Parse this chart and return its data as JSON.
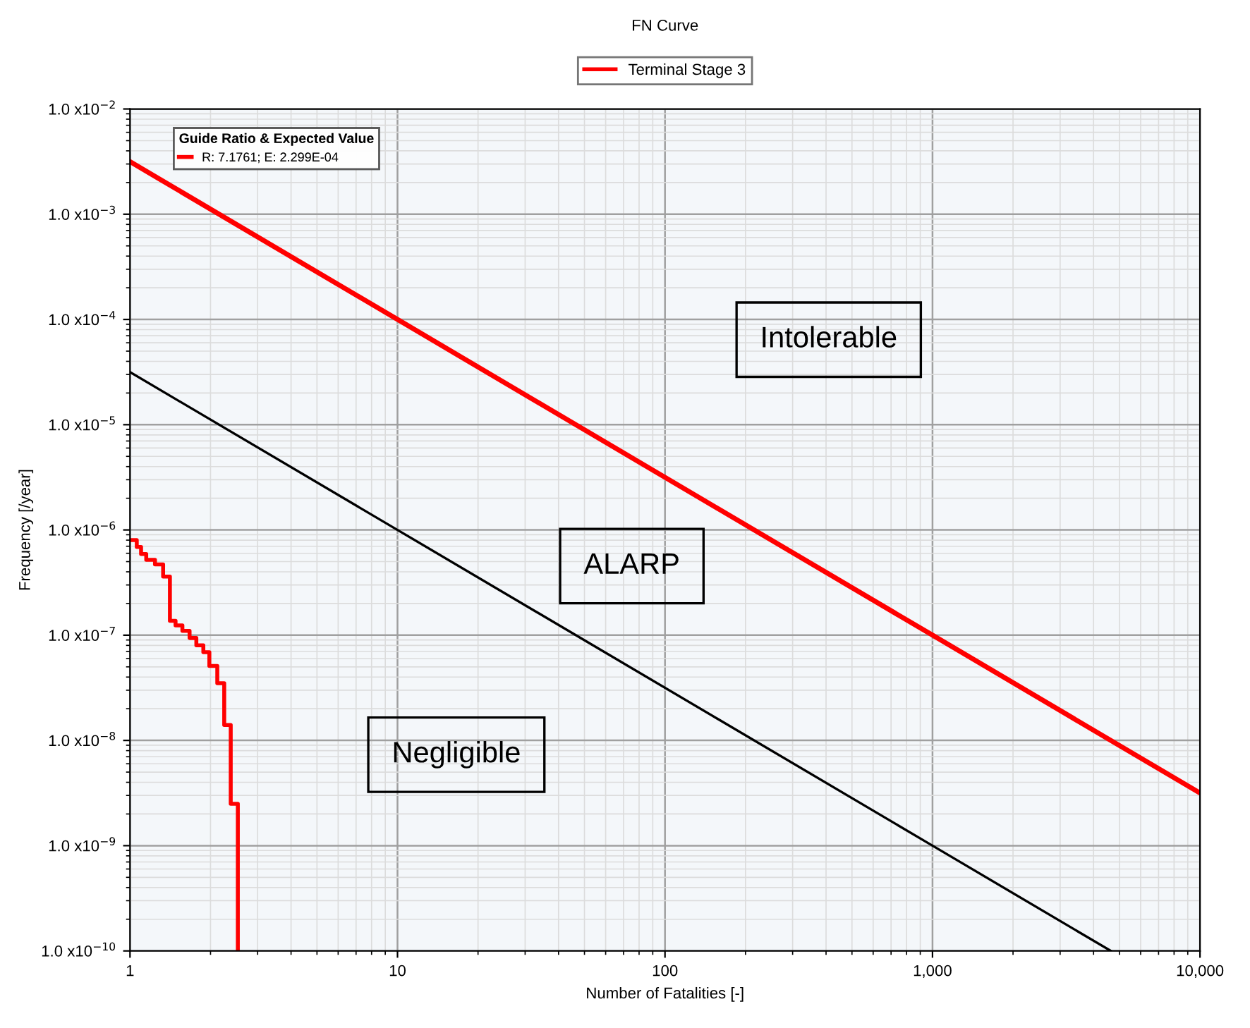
{
  "chart_data": {
    "type": "step",
    "title": "FN Curve",
    "xlabel": "Number of Fatalities [-]",
    "ylabel": "Frequency [/year]",
    "log": "xy",
    "grid": true,
    "legend": "top",
    "marker": "none",
    "line_style": "solid",
    "xlim": [
      1,
      10000
    ],
    "ylim": [
      1e-10,
      0.01
    ],
    "xticks": [
      1,
      10,
      100,
      {
        "value": 1000,
        "label": "1,000"
      },
      {
        "value": 10000,
        "label": "10,000"
      }
    ],
    "yticks": [
      {
        "value": 1e-10,
        "label": "1.0 x10$^{−10}$"
      },
      {
        "value": 1e-09,
        "label": "1.0 x10$^{−9}$"
      },
      {
        "value": 1e-08,
        "label": "1.0 x10$^{−8}$"
      },
      {
        "value": 1e-07,
        "label": "1.0 x10$^{−7}$"
      },
      {
        "value": 1e-06,
        "label": "1.0 x10$^{−6}$"
      },
      {
        "value": 1e-05,
        "label": "1.0 x10$^{−5}$"
      },
      {
        "value": 0.0001,
        "label": "1.0 x10$^{−4}$"
      },
      {
        "value": 0.001,
        "label": "1.0 x10$^{−3}$"
      },
      {
        "value": 0.01,
        "label": "1.0 x10$^{−2}$"
      }
    ],
    "series": [
      {
        "name": "Terminal Stage 3",
        "color": "#ff0000",
        "x": [
          1,
          1.06,
          1.1,
          1.15,
          1.24,
          1.33,
          1.41,
          1.48,
          1.57,
          1.67,
          1.77,
          1.88,
          1.98,
          2.12,
          2.25,
          2.38,
          2.53
        ],
        "values": [
          8e-07,
          6.9e-07,
          5.9e-07,
          5.2e-07,
          4.7e-07,
          3.6e-07,
          1.37e-07,
          1.24e-07,
          1.1e-07,
          9.4e-08,
          8e-08,
          6.9e-08,
          5.1e-08,
          3.5e-08,
          1.4e-08,
          2.5e-09,
          1e-10
        ]
      },
      {
        "type": "line",
        "color": "#ff0000",
        "x": [
          1,
          10,
          1000,
          10000
        ],
        "values": [
          0.00316,
          0.0001,
          1e-07,
          3.16e-09
        ]
      },
      {
        "type": "line",
        "color": "#000000",
        "x": [
          1,
          10,
          1000,
          4642
        ],
        "values": [
          3.16e-05,
          1e-06,
          1e-09,
          1e-10
        ]
      }
    ],
    "annotations": [
      "Guide Ratio & Expected Value",
      "R: 7.1761; E: 2.299E-04",
      "Intolerable",
      "ALARP",
      "Negligible"
    ]
  }
}
